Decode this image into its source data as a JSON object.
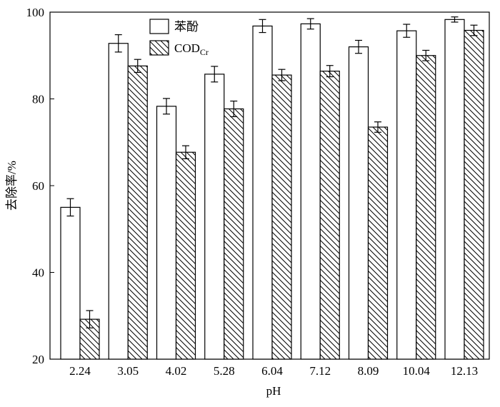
{
  "chart_data": {
    "type": "bar",
    "x_label": "pH",
    "y_label": "去除率/%",
    "categories": [
      "2.24",
      "3.05",
      "4.02",
      "5.28",
      "6.04",
      "7.12",
      "8.09",
      "10.04",
      "12.13"
    ],
    "series": [
      {
        "name": "苯酚",
        "color": "#ffffff",
        "hatch": false,
        "values": [
          55,
          92.8,
          78.3,
          85.7,
          96.8,
          97.3,
          92,
          95.7,
          98.3
        ],
        "errors": [
          2,
          2,
          1.8,
          1.8,
          1.5,
          1.2,
          1.5,
          1.5,
          0.6
        ]
      },
      {
        "name": "COD",
        "name_subscript": "Cr",
        "color": "#ffffff",
        "hatch": true,
        "values": [
          29.2,
          87.6,
          67.7,
          77.7,
          85.5,
          86.4,
          73.5,
          90,
          95.8
        ],
        "errors": [
          2,
          1.5,
          1.5,
          1.8,
          1.3,
          1.3,
          1.2,
          1.2,
          1.2
        ]
      }
    ],
    "ylim": [
      20,
      100
    ],
    "yticks": [
      20,
      40,
      60,
      80,
      100
    ],
    "legend": "top-left"
  }
}
